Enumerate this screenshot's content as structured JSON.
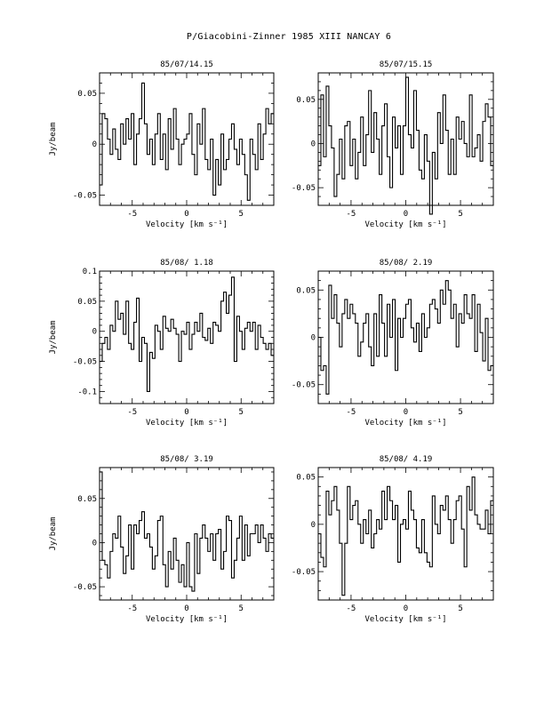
{
  "page_title": "P/Giacobini-Zinner 1985 XIII   NANCAY     6",
  "chart_data": [
    {
      "type": "line",
      "title": "85/07/14.15",
      "xlabel": "Velocity [km s⁻¹]",
      "ylabel": "Jy/beam",
      "xlim": [
        -8,
        8
      ],
      "ylim": [
        -0.06,
        0.07
      ],
      "xticks": [
        "-5",
        "0",
        "5"
      ],
      "yticks": [
        {
          "v": -0.05,
          "label": "-0.05"
        },
        {
          "v": 0,
          "label": "0"
        },
        {
          "v": 0.05,
          "label": "0.05"
        }
      ],
      "series": [
        {
          "values": [
            -0.04,
            0.03,
            0.025,
            0.005,
            -0.01,
            0.015,
            -0.005,
            -0.015,
            0.02,
            0.0,
            0.025,
            0.005,
            0.03,
            -0.02,
            0.01,
            0.025,
            0.06,
            0.02,
            -0.01,
            0.005,
            -0.02,
            0.01,
            0.03,
            -0.015,
            0.01,
            -0.025,
            0.025,
            -0.005,
            0.035,
            0.005,
            -0.02,
            0.0,
            0.005,
            0.01,
            0.03,
            -0.01,
            -0.03,
            0.02,
            0.0,
            0.035,
            -0.015,
            -0.025,
            0.005,
            -0.05,
            -0.015,
            -0.04,
            0.01,
            -0.025,
            -0.015,
            0.005,
            0.02,
            -0.005,
            -0.02,
            0.005,
            -0.01,
            -0.03,
            -0.055,
            0.005,
            -0.01,
            -0.025,
            0.02,
            -0.015,
            0.01,
            0.035,
            0.02,
            0.03
          ]
        }
      ]
    },
    {
      "type": "line",
      "title": "85/07/15.15",
      "xlabel": "Velocity [km s⁻¹]",
      "ylabel": "",
      "xlim": [
        -8,
        8
      ],
      "ylim": [
        -0.07,
        0.08
      ],
      "xticks": [
        "-5",
        "0",
        "5"
      ],
      "yticks": [
        {
          "v": -0.05,
          "label": "-0.05"
        },
        {
          "v": 0,
          "label": "0"
        },
        {
          "v": 0.05,
          "label": "0.05"
        }
      ],
      "series": [
        {
          "values": [
            -0.025,
            0.055,
            -0.015,
            0.065,
            0.02,
            -0.005,
            -0.06,
            -0.035,
            0.005,
            -0.04,
            0.02,
            0.025,
            -0.025,
            0.005,
            -0.04,
            -0.01,
            0.03,
            -0.025,
            0.01,
            0.06,
            -0.01,
            0.035,
            0.005,
            -0.035,
            0.02,
            0.045,
            -0.015,
            -0.05,
            0.03,
            -0.005,
            0.02,
            -0.035,
            0.02,
            0.075,
            0.01,
            -0.005,
            0.06,
            0.015,
            -0.03,
            -0.04,
            0.01,
            -0.02,
            -0.08,
            -0.01,
            -0.04,
            0.035,
            0.0,
            0.055,
            0.015,
            -0.035,
            0.005,
            -0.035,
            0.03,
            0.005,
            0.025,
            0.0,
            -0.015,
            0.055,
            -0.015,
            -0.005,
            0.01,
            -0.02,
            0.025,
            0.045,
            0.03,
            -0.025
          ]
        }
      ]
    },
    {
      "type": "line",
      "title": "85/08/ 1.18",
      "xlabel": "Velocity [km s⁻¹]",
      "ylabel": "Jy/beam",
      "xlim": [
        -8,
        8
      ],
      "ylim": [
        -0.12,
        0.1
      ],
      "xticks": [
        "-5",
        "0",
        "5"
      ],
      "yticks": [
        {
          "v": -0.1,
          "label": "-0.1"
        },
        {
          "v": -0.05,
          "label": "-0.05"
        },
        {
          "v": 0,
          "label": "0"
        },
        {
          "v": 0.05,
          "label": "0.05"
        },
        {
          "v": 0.1,
          "label": "0.1"
        }
      ],
      "series": [
        {
          "values": [
            -0.05,
            -0.02,
            -0.01,
            -0.03,
            0.01,
            0.0,
            0.05,
            0.02,
            0.03,
            -0.005,
            0.05,
            -0.02,
            -0.03,
            0.015,
            0.055,
            -0.05,
            -0.01,
            -0.02,
            -0.1,
            -0.035,
            -0.045,
            0.01,
            0.0,
            -0.03,
            0.025,
            0.005,
            0.0,
            0.02,
            0.005,
            -0.005,
            -0.05,
            0.0,
            -0.005,
            0.015,
            -0.03,
            -0.005,
            0.015,
            0.0,
            0.03,
            -0.01,
            -0.015,
            0.005,
            -0.02,
            0.015,
            0.01,
            0.0,
            0.05,
            0.065,
            0.03,
            0.06,
            0.09,
            -0.05,
            0.025,
            0.0,
            -0.03,
            0.005,
            0.015,
            0.0,
            0.015,
            -0.03,
            0.01,
            -0.01,
            -0.02,
            -0.03,
            -0.02,
            -0.04
          ]
        }
      ]
    },
    {
      "type": "line",
      "title": "85/08/ 2.19",
      "xlabel": "Velocity [km s⁻¹]",
      "ylabel": "",
      "xlim": [
        -8,
        8
      ],
      "ylim": [
        -0.07,
        0.07
      ],
      "xticks": [
        "-5",
        "0",
        "5"
      ],
      "yticks": [
        {
          "v": -0.05,
          "label": "-0.05"
        },
        {
          "v": 0,
          "label": "0"
        },
        {
          "v": 0.05,
          "label": "0.05"
        }
      ],
      "series": [
        {
          "values": [
            0.0,
            -0.035,
            -0.03,
            -0.06,
            0.055,
            0.02,
            0.045,
            0.015,
            -0.01,
            0.025,
            0.04,
            0.02,
            0.035,
            0.025,
            0.015,
            -0.02,
            -0.005,
            0.015,
            0.025,
            -0.01,
            -0.03,
            0.025,
            -0.02,
            0.045,
            0.015,
            -0.02,
            0.035,
            0.0,
            0.04,
            -0.035,
            0.02,
            0.0,
            0.02,
            0.035,
            0.04,
            0.01,
            -0.005,
            0.015,
            -0.015,
            0.025,
            0.0,
            0.01,
            0.035,
            0.04,
            0.03,
            0.015,
            0.05,
            0.035,
            0.06,
            0.05,
            0.02,
            0.035,
            -0.01,
            0.025,
            0.015,
            0.045,
            0.025,
            0.02,
            0.045,
            -0.015,
            0.035,
            0.005,
            -0.025,
            0.02,
            -0.035,
            -0.03
          ]
        }
      ]
    },
    {
      "type": "line",
      "title": "85/08/ 3.19",
      "xlabel": "Velocity [km s⁻¹]",
      "ylabel": "Jy/beam",
      "xlim": [
        -8,
        8
      ],
      "ylim": [
        -0.065,
        0.085
      ],
      "xticks": [
        "-5",
        "0",
        "5"
      ],
      "yticks": [
        {
          "v": -0.05,
          "label": "-0.05"
        },
        {
          "v": 0,
          "label": "0"
        },
        {
          "v": 0.05,
          "label": "0.05"
        }
      ],
      "series": [
        {
          "values": [
            0.08,
            -0.02,
            -0.025,
            -0.04,
            -0.01,
            0.01,
            0.005,
            0.03,
            -0.005,
            -0.035,
            -0.015,
            0.02,
            -0.03,
            0.02,
            0.01,
            0.025,
            0.035,
            0.005,
            0.01,
            -0.005,
            -0.03,
            -0.015,
            0.025,
            0.03,
            -0.025,
            -0.05,
            -0.01,
            -0.03,
            0.005,
            -0.02,
            -0.045,
            -0.025,
            -0.05,
            0.0,
            -0.05,
            -0.055,
            0.01,
            -0.035,
            0.005,
            0.02,
            0.005,
            -0.01,
            0.01,
            -0.02,
            0.01,
            0.015,
            -0.03,
            -0.01,
            0.03,
            0.025,
            -0.04,
            -0.02,
            0.005,
            0.03,
            -0.02,
            0.02,
            -0.015,
            0.01,
            0.01,
            0.02,
            0.0,
            0.02,
            0.005,
            -0.01,
            0.01,
            0.005
          ]
        }
      ]
    },
    {
      "type": "line",
      "title": "85/08/ 4.19",
      "xlabel": "Velocity [km s⁻¹]",
      "ylabel": "",
      "xlim": [
        -8,
        8
      ],
      "ylim": [
        -0.08,
        0.06
      ],
      "xticks": [
        "-5",
        "0",
        "5"
      ],
      "yticks": [
        {
          "v": -0.05,
          "label": "-0.05"
        },
        {
          "v": 0,
          "label": "0"
        },
        {
          "v": 0.05,
          "label": "0.05"
        }
      ],
      "series": [
        {
          "values": [
            -0.01,
            -0.035,
            -0.045,
            0.035,
            0.01,
            0.025,
            0.04,
            0.015,
            -0.02,
            -0.075,
            -0.02,
            0.04,
            0.005,
            0.02,
            0.025,
            0.0,
            -0.02,
            0.005,
            -0.01,
            0.015,
            -0.025,
            -0.01,
            0.005,
            -0.005,
            0.035,
            0.005,
            0.04,
            0.025,
            0.005,
            0.02,
            -0.04,
            0.0,
            0.005,
            -0.005,
            0.035,
            0.015,
            0.005,
            -0.025,
            -0.03,
            0.005,
            -0.03,
            -0.04,
            -0.045,
            0.03,
            0.0,
            -0.01,
            0.02,
            0.015,
            0.03,
            0.005,
            -0.02,
            0.005,
            0.025,
            0.03,
            -0.005,
            -0.045,
            0.04,
            0.015,
            0.05,
            0.01,
            0.0,
            -0.005,
            -0.005,
            0.015,
            -0.01,
            0.025
          ]
        }
      ]
    }
  ]
}
